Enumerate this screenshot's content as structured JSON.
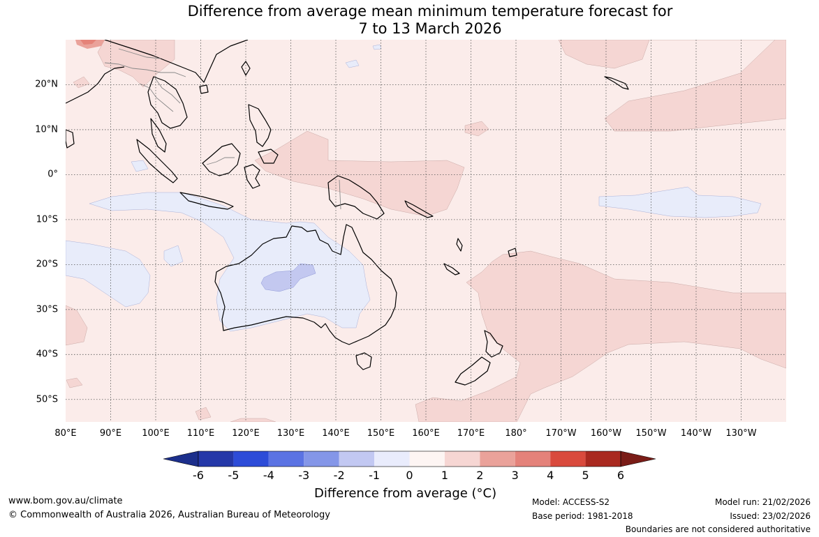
{
  "title": {
    "line1": "Difference from average mean minimum temperature forecast for",
    "line2": "7 to 13 March 2026"
  },
  "map": {
    "longitude_labels": [
      "80°E",
      "90°E",
      "100°E",
      "110°E",
      "120°E",
      "130°E",
      "140°E",
      "150°E",
      "160°E",
      "170°E",
      "180°",
      "170°W",
      "160°W",
      "150°W",
      "140°W",
      "130°W"
    ],
    "latitude_labels": [
      "20°N",
      "10°N",
      "0°",
      "10°S",
      "20°S",
      "30°S",
      "40°S",
      "50°S"
    ],
    "extent": {
      "lon_min": 80,
      "lon_max": 240,
      "lat_min": -55,
      "lat_max": 30
    },
    "colors": {
      "ocean_land_base": "#fbecea",
      "anomaly_0_1": "#fbecea",
      "anomaly_1_2": "#f5d6d3",
      "anomaly_2_3": "#eaa29a",
      "anomaly_3_4": "#e58379",
      "anomaly_neg1_0": "#e8ecfa",
      "anomaly_neg2_neg1": "#c3c8f0",
      "coast": "#000000",
      "borders": "#888888",
      "grid": "#555555"
    }
  },
  "colorbar": {
    "ticks": [
      "-6",
      "-5",
      "-4",
      "-3",
      "-2",
      "-1",
      "0",
      "1",
      "2",
      "3",
      "4",
      "5",
      "6"
    ],
    "colors": [
      "#1c2f8c",
      "#2538a8",
      "#2d4cd8",
      "#5b73e3",
      "#8496e8",
      "#c2c8f2",
      "#e9ecfc",
      "#fdf5f3",
      "#f6d6d3",
      "#eaa29a",
      "#e4827a",
      "#d94a3d",
      "#a92920",
      "#7a1c17"
    ],
    "label": "Difference from average (°C)"
  },
  "footer": {
    "website": "www.bom.gov.au/climate",
    "copyright": "© Commonwealth of Australia 2026, Australian Bureau of Meteorology",
    "model": "Model: ACCESS-S2",
    "base_period": "Base period: 1981-2018",
    "model_run": "Model run: 21/02/2026",
    "issued": "Issued: 23/02/2026",
    "disclaimer": "Boundaries are not considered authoritative"
  }
}
